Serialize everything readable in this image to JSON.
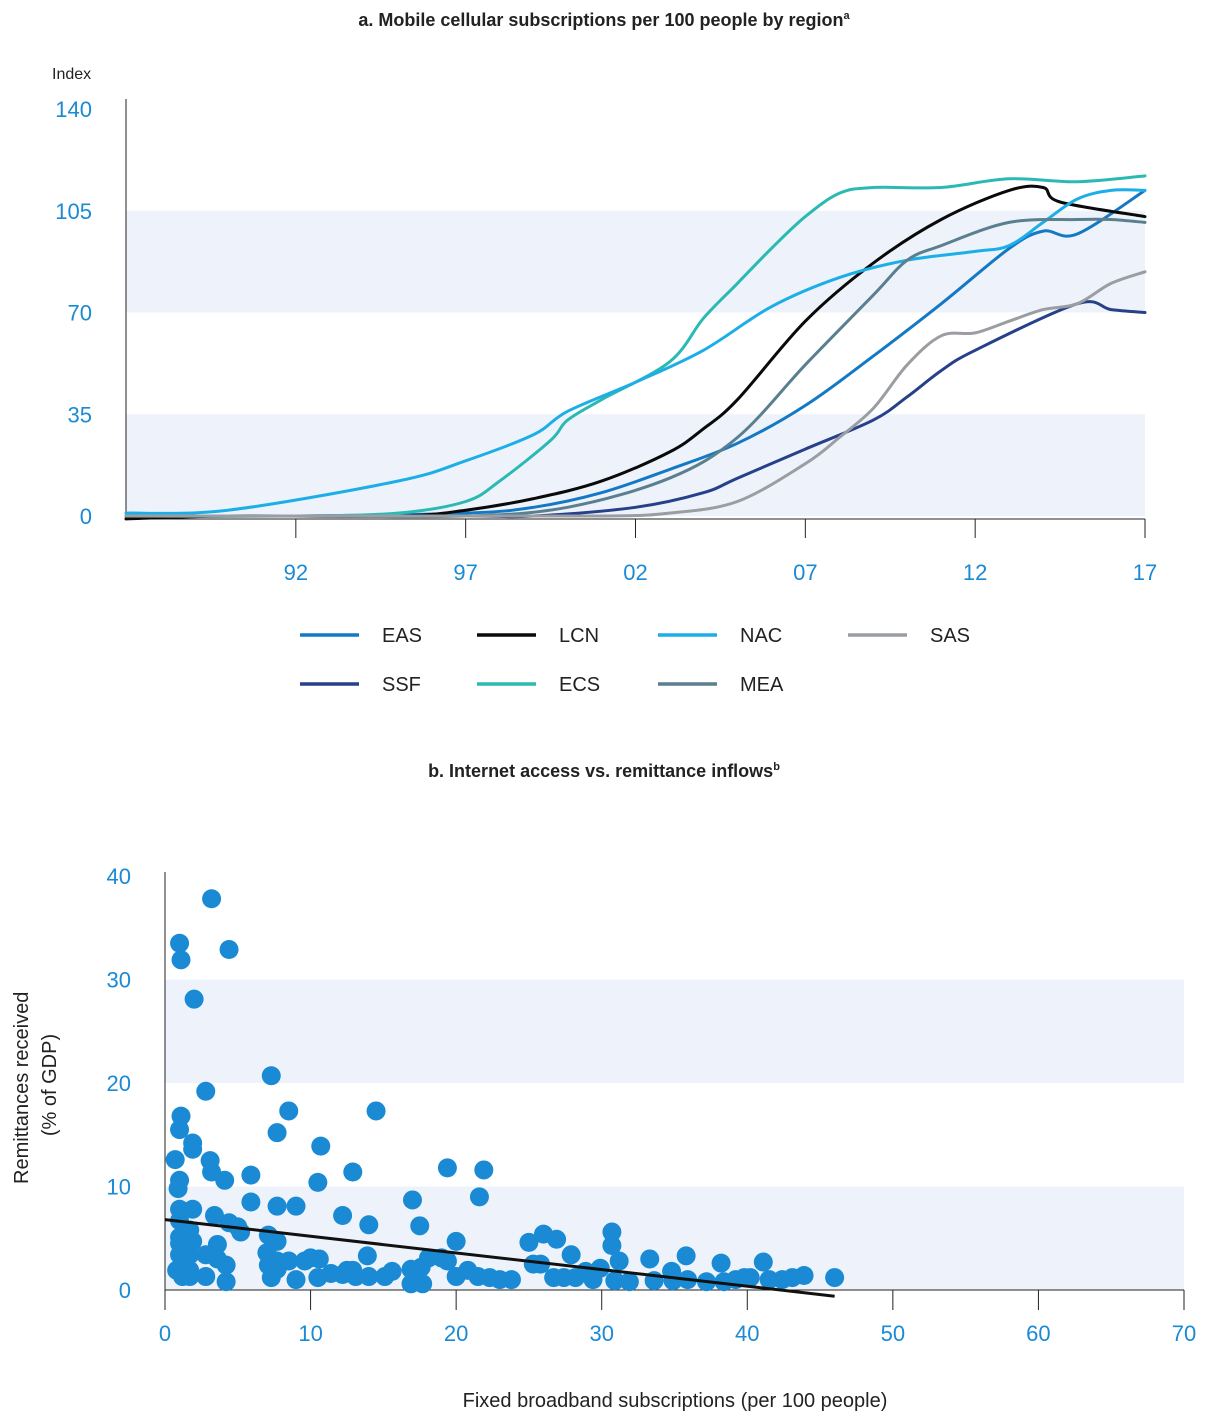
{
  "colors": {
    "tick": "#1a8ad4",
    "band": "#eef3fb",
    "axis": "#222222",
    "dot": "#1a8ad4",
    "trend": "#111111"
  },
  "chart_data": [
    {
      "type": "line",
      "title": "a. Mobile cellular subscriptions per 100 people by region",
      "title_sup": "a",
      "ylabel": "Index",
      "xlabel": "",
      "ylim": [
        0,
        140
      ],
      "xlim": [
        1987,
        2017
      ],
      "yticks": [
        0,
        35,
        70,
        105,
        140
      ],
      "xticks": [
        {
          "value": 1992,
          "label": "92"
        },
        {
          "value": 1997,
          "label": "97"
        },
        {
          "value": 2002,
          "label": "02"
        },
        {
          "value": 2007,
          "label": "07"
        },
        {
          "value": 2012,
          "label": "12"
        },
        {
          "value": 2017,
          "label": "17"
        }
      ],
      "bands": [
        [
          0,
          35
        ],
        [
          70,
          105
        ]
      ],
      "grid": false,
      "legend_position": "bottom",
      "series": [
        {
          "name": "EAS",
          "color": "#1479c4",
          "x": [
            1987,
            1992,
            1997,
            1999,
            2001,
            2003,
            2005,
            2007,
            2009,
            2011,
            2013,
            2014,
            2015,
            2017
          ],
          "y": [
            0,
            0,
            1,
            3,
            8,
            16,
            25,
            38,
            55,
            73,
            92,
            98,
            97,
            112
          ]
        },
        {
          "name": "SSF",
          "color": "#26408a",
          "x": [
            1987,
            1992,
            1997,
            1999,
            2002,
            2004,
            2005,
            2007,
            2009,
            2010,
            2011,
            2012,
            2015,
            2016,
            2017
          ],
          "y": [
            0,
            0,
            0,
            0,
            3,
            8,
            13,
            23,
            33,
            41,
            50,
            57,
            73,
            71,
            70
          ]
        },
        {
          "name": "LCN",
          "color": "#0a0a0a",
          "x": [
            1987,
            1990,
            1995,
            1997,
            1999,
            2001,
            2003,
            2004,
            2005,
            2007,
            2009,
            2011,
            2013,
            2014,
            2014.5,
            2017
          ],
          "y": [
            -1,
            0,
            0,
            2,
            6,
            12,
            22,
            30,
            40,
            67,
            87,
            102,
            112,
            113,
            108,
            103
          ]
        },
        {
          "name": "ECS",
          "color": "#2bb9b3",
          "x": [
            1987,
            1992,
            1995,
            1997,
            1998,
            1999.5,
            2000,
            2001,
            2003,
            2004,
            2005,
            2006,
            2007,
            2008,
            2009,
            2011,
            2013,
            2015,
            2017
          ],
          "y": [
            0,
            0,
            1,
            5,
            12,
            26,
            33,
            40,
            53,
            68,
            80,
            92,
            103,
            111,
            113,
            113,
            116,
            115,
            117
          ]
        },
        {
          "name": "NAC",
          "color": "#1daee8",
          "x": [
            1987,
            1990,
            1995,
            1997,
            1999,
            2000,
            2002,
            2004,
            2006,
            2008,
            2010,
            2012,
            2013,
            2014,
            2015,
            2016,
            2017
          ],
          "y": [
            1,
            2,
            12,
            19,
            28,
            36,
            46,
            57,
            72,
            82,
            88,
            91,
            93,
            101,
            109,
            112,
            112
          ]
        },
        {
          "name": "MEA",
          "color": "#5a7f8f",
          "x": [
            1987,
            1992,
            1997,
            2000,
            2003,
            2005,
            2007,
            2009,
            2010,
            2011,
            2013,
            2015,
            2016,
            2017
          ],
          "y": [
            0,
            0,
            0,
            3,
            13,
            27,
            52,
            76,
            88,
            93,
            101,
            102,
            102,
            101
          ]
        },
        {
          "name": "SAS",
          "color": "#9a9ea3",
          "x": [
            1987,
            1995,
            2001,
            2003,
            2005,
            2007,
            2008,
            2009,
            2010,
            2011,
            2012,
            2013,
            2014,
            2015,
            2016,
            2017
          ],
          "y": [
            0,
            0,
            0,
            1,
            5,
            18,
            27,
            37,
            52,
            62,
            63,
            67,
            71,
            73,
            80,
            84
          ]
        }
      ]
    },
    {
      "type": "scatter",
      "title": "b. Internet access vs. remittance inflows",
      "title_sup": "b",
      "xlabel": "Fixed broadband subscriptions (per 100 people)",
      "ylabel": "Remittances received",
      "ylabel_sub": "(% of GDP)",
      "xlim": [
        0,
        70
      ],
      "ylim": [
        0,
        40
      ],
      "xticks": [
        0,
        10,
        20,
        30,
        40,
        50,
        60,
        70
      ],
      "yticks": [
        0,
        10,
        20,
        30,
        40
      ],
      "bands": [
        [
          0,
          10
        ],
        [
          20,
          30
        ]
      ],
      "grid": false,
      "trendline": {
        "x": [
          0,
          46
        ],
        "y": [
          6.8,
          -0.6
        ]
      },
      "points": [
        [
          3.2,
          37.8
        ],
        [
          4.4,
          32.9
        ],
        [
          1.0,
          33.5
        ],
        [
          1.1,
          31.9
        ],
        [
          2.0,
          28.1
        ],
        [
          2.8,
          19.2
        ],
        [
          1.1,
          16.8
        ],
        [
          1.0,
          15.5
        ],
        [
          1.9,
          14.2
        ],
        [
          1.9,
          13.6
        ],
        [
          3.1,
          12.5
        ],
        [
          0.7,
          12.6
        ],
        [
          3.2,
          11.4
        ],
        [
          4.1,
          10.6
        ],
        [
          1.0,
          10.6
        ],
        [
          0.9,
          9.8
        ],
        [
          1.0,
          7.8
        ],
        [
          1.9,
          7.8
        ],
        [
          3.4,
          7.2
        ],
        [
          4.4,
          6.5
        ],
        [
          5.0,
          6.1
        ],
        [
          5.2,
          5.6
        ],
        [
          1.0,
          6.7
        ],
        [
          1.7,
          5.8
        ],
        [
          1.0,
          5.1
        ],
        [
          1.0,
          4.5
        ],
        [
          1.9,
          4.7
        ],
        [
          3.6,
          4.4
        ],
        [
          1.0,
          3.4
        ],
        [
          1.7,
          3.4
        ],
        [
          2.8,
          3.4
        ],
        [
          3.6,
          3.0
        ],
        [
          0.8,
          1.9
        ],
        [
          1.7,
          1.9
        ],
        [
          4.2,
          2.4
        ],
        [
          1.2,
          1.3
        ],
        [
          1.7,
          1.3
        ],
        [
          2.8,
          1.3
        ],
        [
          4.2,
          0.8
        ],
        [
          7.3,
          20.7
        ],
        [
          8.5,
          17.3
        ],
        [
          7.7,
          15.2
        ],
        [
          5.9,
          11.1
        ],
        [
          5.9,
          8.5
        ],
        [
          7.7,
          8.1
        ],
        [
          9.0,
          8.1
        ],
        [
          7.1,
          5.3
        ],
        [
          7.7,
          4.7
        ],
        [
          7.0,
          3.6
        ],
        [
          7.7,
          2.8
        ],
        [
          8.5,
          2.8
        ],
        [
          7.1,
          2.4
        ],
        [
          7.7,
          2.0
        ],
        [
          7.3,
          1.2
        ],
        [
          9.0,
          1.0
        ],
        [
          10.7,
          13.9
        ],
        [
          12.9,
          11.4
        ],
        [
          10.5,
          10.4
        ],
        [
          12.2,
          7.2
        ],
        [
          14.0,
          6.3
        ],
        [
          10.0,
          3.1
        ],
        [
          10.6,
          3.0
        ],
        [
          9.6,
          2.8
        ],
        [
          12.5,
          1.9
        ],
        [
          12.9,
          1.9
        ],
        [
          11.4,
          1.6
        ],
        [
          12.2,
          1.5
        ],
        [
          13.1,
          1.3
        ],
        [
          14.0,
          1.3
        ],
        [
          10.5,
          1.2
        ],
        [
          13.9,
          3.3
        ],
        [
          14.5,
          17.3
        ],
        [
          15.1,
          1.3
        ],
        [
          15.6,
          1.8
        ],
        [
          16.9,
          2.0
        ],
        [
          17.6,
          2.2
        ],
        [
          16.9,
          0.6
        ],
        [
          17.7,
          0.6
        ],
        [
          17.0,
          8.7
        ],
        [
          17.5,
          6.2
        ],
        [
          18.1,
          3.1
        ],
        [
          19.0,
          3.1
        ],
        [
          19.4,
          2.8
        ],
        [
          20.0,
          4.7
        ],
        [
          20.8,
          1.9
        ],
        [
          20.0,
          1.3
        ],
        [
          21.5,
          1.3
        ],
        [
          22.3,
          1.2
        ],
        [
          23.0,
          1.0
        ],
        [
          23.8,
          1.0
        ],
        [
          19.4,
          11.8
        ],
        [
          21.6,
          9.0
        ],
        [
          21.9,
          11.6
        ],
        [
          25.0,
          4.6
        ],
        [
          26.0,
          5.4
        ],
        [
          26.9,
          4.9
        ],
        [
          25.3,
          2.5
        ],
        [
          25.8,
          2.5
        ],
        [
          27.9,
          3.4
        ],
        [
          26.7,
          1.2
        ],
        [
          27.4,
          1.2
        ],
        [
          28.2,
          1.2
        ],
        [
          28.9,
          1.8
        ],
        [
          29.4,
          1.0
        ],
        [
          29.9,
          2.1
        ],
        [
          30.7,
          5.6
        ],
        [
          30.7,
          4.3
        ],
        [
          31.2,
          2.8
        ],
        [
          30.9,
          0.9
        ],
        [
          31.9,
          0.8
        ],
        [
          33.3,
          3.0
        ],
        [
          33.6,
          0.9
        ],
        [
          34.8,
          1.8
        ],
        [
          34.9,
          0.9
        ],
        [
          35.8,
          3.3
        ],
        [
          35.9,
          1.0
        ],
        [
          37.2,
          0.8
        ],
        [
          38.2,
          2.6
        ],
        [
          38.4,
          0.8
        ],
        [
          39.2,
          1.0
        ],
        [
          39.8,
          1.2
        ],
        [
          40.2,
          1.2
        ],
        [
          41.1,
          2.7
        ],
        [
          41.5,
          1.0
        ],
        [
          42.4,
          1.0
        ],
        [
          43.1,
          1.2
        ],
        [
          43.9,
          1.4
        ],
        [
          46.0,
          1.2
        ]
      ]
    }
  ]
}
